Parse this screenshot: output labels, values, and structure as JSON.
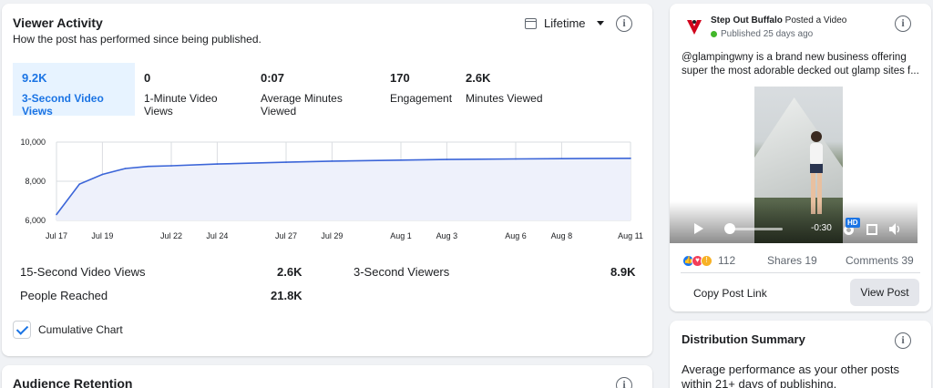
{
  "viewer_activity": {
    "title": "Viewer Activity",
    "subtitle": "How the post has performed since being published.",
    "range_label": "Lifetime",
    "tabs": [
      {
        "value": "9.2K",
        "label": "3-Second Video Views",
        "active": true
      },
      {
        "value": "0",
        "label": "1-Minute Video Views",
        "active": false
      },
      {
        "value": "0:07",
        "label": "Average Minutes Viewed",
        "active": false
      },
      {
        "value": "170",
        "label": "Engagement",
        "active": false
      },
      {
        "value": "2.6K",
        "label": "Minutes Viewed",
        "active": false
      }
    ],
    "stats": [
      {
        "label": "15-Second Video Views",
        "value": "2.6K"
      },
      {
        "label": "3-Second Viewers",
        "value": "8.9K"
      },
      {
        "label": "People Reached",
        "value": "21.8K"
      }
    ],
    "cumulative_label": "Cumulative Chart",
    "cumulative_checked": true
  },
  "chart_data": {
    "type": "area",
    "x": [
      "Jul 17",
      "Jul 18",
      "Jul 19",
      "Jul 20",
      "Jul 21",
      "Jul 22",
      "Jul 24",
      "Jul 27",
      "Jul 29",
      "Aug 1",
      "Aug 3",
      "Aug 6",
      "Aug 8",
      "Aug 11"
    ],
    "values": [
      6300,
      7850,
      8350,
      8650,
      8760,
      8790,
      8880,
      8970,
      9030,
      9080,
      9110,
      9140,
      9155,
      9170
    ],
    "x_ticks": [
      "Jul 17",
      "Jul 19",
      "Jul 22",
      "Jul 24",
      "Jul 27",
      "Jul 29",
      "Aug 1",
      "Aug 3",
      "Aug 6",
      "Aug 8",
      "Aug 11"
    ],
    "y_ticks": [
      "6,000",
      "8,000",
      "10,000"
    ],
    "ylim": [
      6000,
      10000
    ],
    "grid": true,
    "line_color": "#3b65d8",
    "fill_color": "#eef1fb"
  },
  "audience_retention": {
    "title": "Audience Retention"
  },
  "post": {
    "page_name": "Step Out Buffalo",
    "action": "Posted a Video",
    "published": "Published 25 days ago",
    "caption": "@glampingwny is a brand new business offering super the most adorable decked out glamp sites f...",
    "video_time": "-0:30",
    "hd_label": "HD",
    "reaction_count": "112",
    "shares": "Shares 19",
    "comments": "Comments 39",
    "copy_link": "Copy Post Link",
    "view_post": "View Post"
  },
  "distribution": {
    "title": "Distribution Summary",
    "text": "Average performance as your other posts within 21+ days of publishing."
  },
  "colors": {
    "accent": "#1b74e4",
    "online": "#42b72a",
    "brand_red": "#d0021b"
  }
}
